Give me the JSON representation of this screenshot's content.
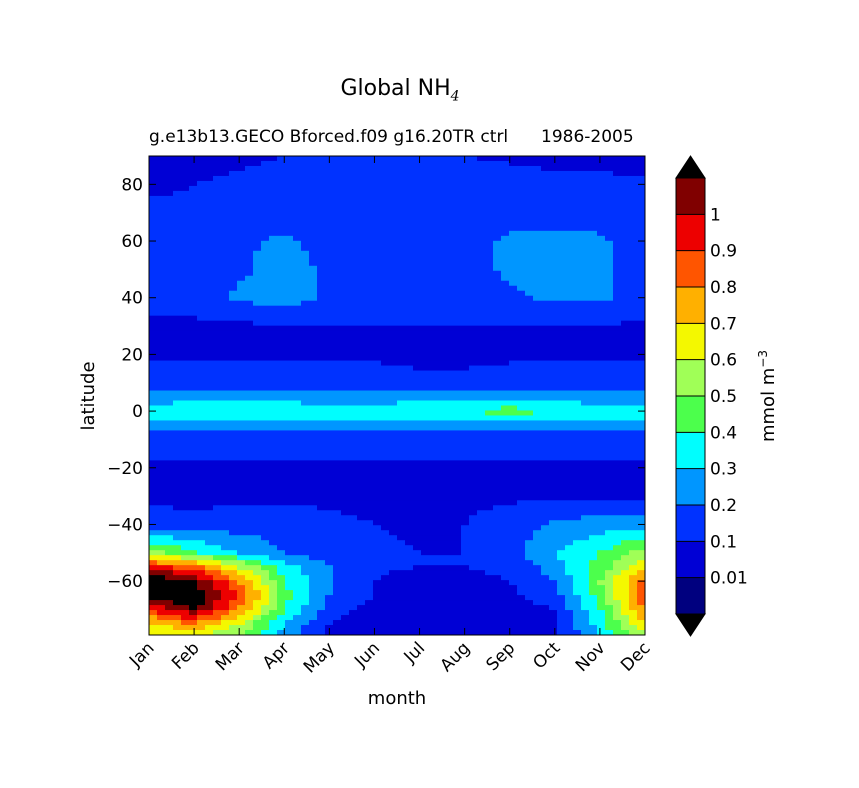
{
  "title": {
    "main": "Global NH",
    "main_sub": "4",
    "case": "g.e13b13.GECO Bforced.f09 g16.20TR ctrl",
    "years": "1986-2005"
  },
  "chart_data": {
    "type": "heatmap",
    "xlabel": "month",
    "ylabel": "latitude",
    "x_categories": [
      "Jan",
      "Feb",
      "Mar",
      "Apr",
      "May",
      "Jun",
      "Jul",
      "Aug",
      "Sep",
      "Oct",
      "Nov",
      "Dec"
    ],
    "yticks": [
      80,
      60,
      40,
      20,
      0,
      -20,
      -40,
      -60
    ],
    "ylim": [
      -79,
      90
    ],
    "colorbar": {
      "label": "mmol m",
      "label_sup": "−3",
      "tick_labels": [
        "0.01",
        "0.1",
        "0.2",
        "0.3",
        "0.4",
        "0.5",
        "0.6",
        "0.7",
        "0.8",
        "0.9",
        "1"
      ],
      "levels": [
        0.01,
        0.1,
        0.2,
        0.3,
        0.4,
        0.5,
        0.6,
        0.7,
        0.8,
        0.9,
        1.0
      ],
      "colors": [
        "#00007f",
        "#0000d5",
        "#0032ff",
        "#0096ff",
        "#00fefe",
        "#4cff4c",
        "#a0ff57",
        "#f4f800",
        "#ffb000",
        "#ff5500",
        "#ed0000",
        "#800000"
      ],
      "under_color": "#000000",
      "over_color": "#000000"
    },
    "lat": [
      90,
      80,
      70,
      60,
      50,
      40,
      30,
      20,
      10,
      5,
      0,
      -5,
      -10,
      -20,
      -30,
      -40,
      -50,
      -55,
      -60,
      -65,
      -70,
      -75,
      -79
    ],
    "values": [
      [
        0.03,
        0.05,
        0.08,
        0.1,
        0.12,
        0.15,
        0.12,
        0.1,
        0.08,
        0.05,
        0.04,
        0.03
      ],
      [
        0.08,
        0.1,
        0.12,
        0.15,
        0.15,
        0.15,
        0.15,
        0.15,
        0.15,
        0.15,
        0.15,
        0.12
      ],
      [
        0.12,
        0.12,
        0.15,
        0.15,
        0.15,
        0.15,
        0.15,
        0.15,
        0.15,
        0.15,
        0.15,
        0.12
      ],
      [
        0.12,
        0.15,
        0.18,
        0.22,
        0.15,
        0.15,
        0.15,
        0.15,
        0.22,
        0.22,
        0.22,
        0.15
      ],
      [
        0.15,
        0.15,
        0.18,
        0.25,
        0.18,
        0.15,
        0.15,
        0.15,
        0.22,
        0.22,
        0.22,
        0.15
      ],
      [
        0.15,
        0.15,
        0.22,
        0.25,
        0.18,
        0.15,
        0.15,
        0.15,
        0.18,
        0.22,
        0.22,
        0.15
      ],
      [
        0.08,
        0.08,
        0.08,
        0.1,
        0.1,
        0.1,
        0.1,
        0.1,
        0.1,
        0.1,
        0.1,
        0.08
      ],
      [
        0.08,
        0.08,
        0.08,
        0.08,
        0.08,
        0.08,
        0.05,
        0.05,
        0.08,
        0.08,
        0.08,
        0.08
      ],
      [
        0.15,
        0.15,
        0.15,
        0.15,
        0.15,
        0.15,
        0.15,
        0.15,
        0.15,
        0.15,
        0.15,
        0.15
      ],
      [
        0.25,
        0.25,
        0.25,
        0.25,
        0.25,
        0.25,
        0.25,
        0.25,
        0.25,
        0.25,
        0.25,
        0.25
      ],
      [
        0.35,
        0.38,
        0.4,
        0.38,
        0.35,
        0.35,
        0.38,
        0.4,
        0.45,
        0.4,
        0.35,
        0.35
      ],
      [
        0.25,
        0.25,
        0.25,
        0.25,
        0.25,
        0.25,
        0.25,
        0.25,
        0.25,
        0.25,
        0.25,
        0.25
      ],
      [
        0.15,
        0.15,
        0.15,
        0.15,
        0.15,
        0.15,
        0.15,
        0.15,
        0.15,
        0.15,
        0.15,
        0.15
      ],
      [
        0.08,
        0.08,
        0.08,
        0.08,
        0.08,
        0.08,
        0.08,
        0.08,
        0.08,
        0.08,
        0.08,
        0.08
      ],
      [
        0.08,
        0.05,
        0.08,
        0.08,
        0.08,
        0.08,
        0.08,
        0.08,
        0.08,
        0.08,
        0.08,
        0.08
      ],
      [
        0.15,
        0.15,
        0.15,
        0.15,
        0.12,
        0.1,
        0.08,
        0.1,
        0.15,
        0.22,
        0.25,
        0.25
      ],
      [
        0.55,
        0.4,
        0.3,
        0.2,
        0.15,
        0.12,
        0.1,
        0.1,
        0.15,
        0.3,
        0.4,
        0.55
      ],
      [
        0.95,
        0.85,
        0.6,
        0.35,
        0.2,
        0.12,
        0.1,
        0.1,
        0.12,
        0.25,
        0.45,
        0.65
      ],
      [
        1.2,
        1.1,
        0.8,
        0.4,
        0.2,
        0.1,
        0.05,
        0.08,
        0.1,
        0.2,
        0.5,
        0.85
      ],
      [
        1.2,
        1.2,
        0.9,
        0.45,
        0.2,
        0.1,
        0.05,
        0.05,
        0.08,
        0.15,
        0.45,
        0.9
      ],
      [
        0.9,
        1.1,
        0.8,
        0.4,
        0.15,
        0.05,
        0.03,
        0.02,
        0.05,
        0.1,
        0.4,
        0.8
      ],
      [
        0.7,
        0.8,
        0.6,
        0.3,
        0.1,
        0.03,
        0.02,
        0.02,
        0.03,
        0.08,
        0.35,
        0.7
      ],
      [
        0.6,
        0.6,
        0.5,
        0.25,
        0.08,
        0.02,
        0.01,
        0.02,
        0.03,
        0.08,
        0.3,
        0.6
      ]
    ]
  }
}
